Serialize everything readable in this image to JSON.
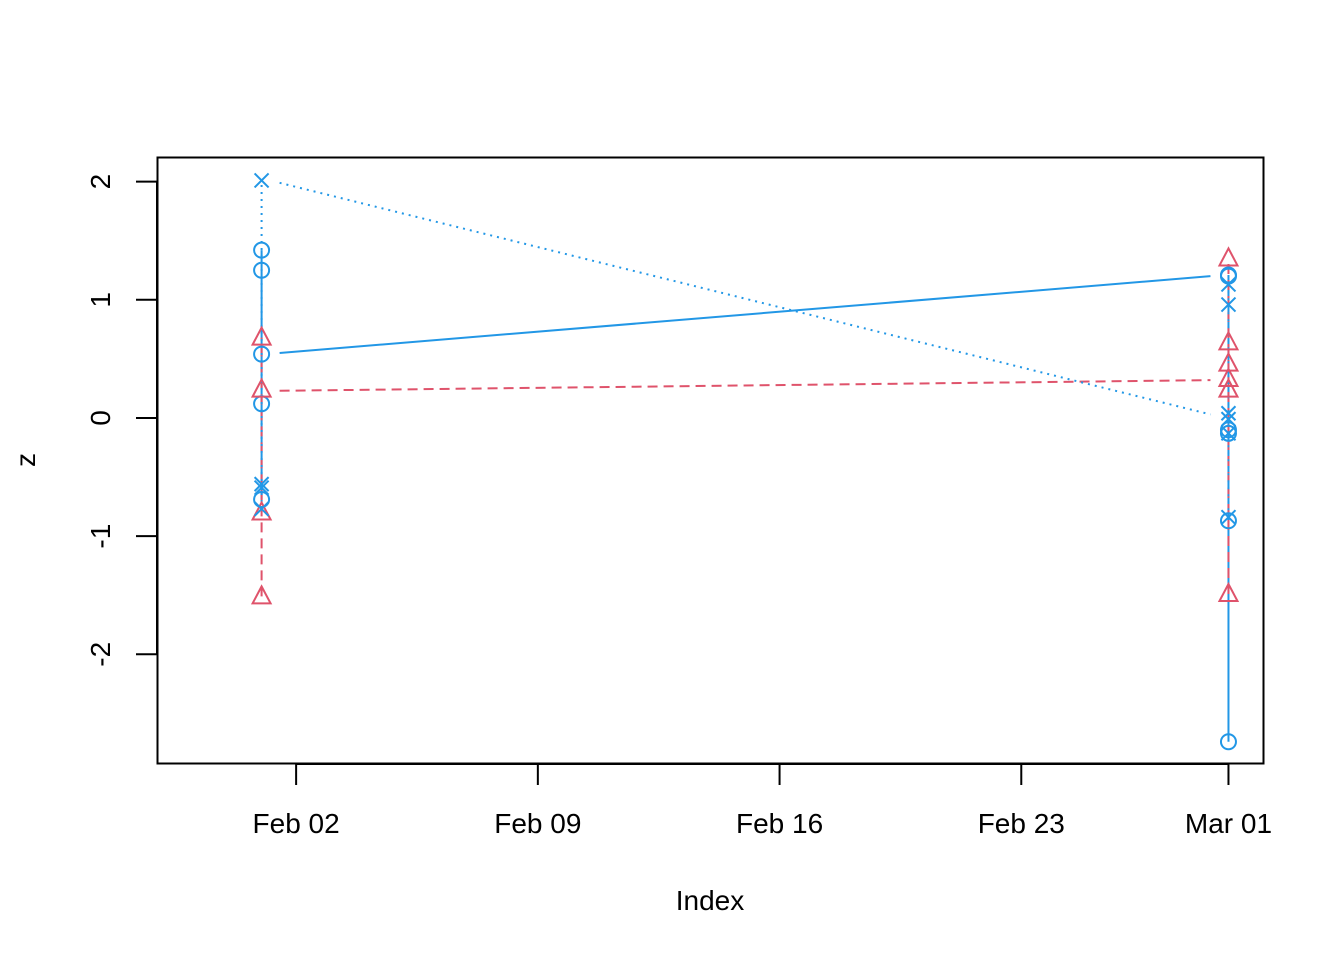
{
  "chart_data": {
    "type": "line",
    "title": "",
    "xlabel": "Index",
    "ylabel": "z",
    "x_ticks": [
      "Feb 02",
      "Feb 09",
      "Feb 16",
      "Feb 23",
      "Mar 01"
    ],
    "x_tick_dates": [
      "2019-02-02",
      "2019-02-09",
      "2019-02-16",
      "2019-02-23",
      "2019-03-01"
    ],
    "y_ticks": [
      "-2",
      "-1",
      "0",
      "1",
      "2"
    ],
    "y_tick_values": [
      -2,
      -1,
      0,
      1,
      2
    ],
    "xlim": [
      "2019-01-29",
      "2019-03-02"
    ],
    "ylim": [
      -2.92,
      2.2
    ],
    "grid": false,
    "legend": "none",
    "series": [
      {
        "color": "#2297E6",
        "marker": "circle",
        "line": "solid",
        "points": [
          {
            "x": "2019-02-01",
            "y": 1.42
          },
          {
            "x": "2019-02-01",
            "y": 1.25
          },
          {
            "x": "2019-02-01",
            "y": 0.54
          },
          {
            "x": "2019-02-01",
            "y": 0.12
          },
          {
            "x": "2019-02-01",
            "y": -0.69
          },
          {
            "x": "2019-03-01",
            "y": 1.21
          },
          {
            "x": "2019-03-01",
            "y": 1.2
          },
          {
            "x": "2019-03-01",
            "y": -0.1
          },
          {
            "x": "2019-03-01",
            "y": -0.13
          },
          {
            "x": "2019-03-01",
            "y": -0.87
          },
          {
            "x": "2019-03-01",
            "y": -2.74
          }
        ]
      },
      {
        "color": "#DF536B",
        "marker": "triangle",
        "line": "dashed",
        "points": [
          {
            "x": "2019-02-01",
            "y": 0.68
          },
          {
            "x": "2019-02-01",
            "y": 0.24
          },
          {
            "x": "2019-02-01",
            "y": -0.8
          },
          {
            "x": "2019-02-01",
            "y": -1.51
          },
          {
            "x": "2019-03-01",
            "y": 1.35
          },
          {
            "x": "2019-03-01",
            "y": 0.64
          },
          {
            "x": "2019-03-01",
            "y": 0.46
          },
          {
            "x": "2019-03-01",
            "y": 0.33
          },
          {
            "x": "2019-03-01",
            "y": 0.24
          },
          {
            "x": "2019-03-01",
            "y": -1.49
          }
        ]
      },
      {
        "color": "#2297E6",
        "marker": "cross",
        "line": "dotted",
        "points": [
          {
            "x": "2019-02-01",
            "y": 2.01
          },
          {
            "x": "2019-02-01",
            "y": -0.56
          },
          {
            "x": "2019-02-01",
            "y": -0.59
          },
          {
            "x": "2019-02-01",
            "y": -0.77
          },
          {
            "x": "2019-03-01",
            "y": 1.13
          },
          {
            "x": "2019-03-01",
            "y": 0.96
          },
          {
            "x": "2019-03-01",
            "y": 0.04
          },
          {
            "x": "2019-03-01",
            "y": -0.01
          },
          {
            "x": "2019-03-01",
            "y": -0.13
          },
          {
            "x": "2019-03-01",
            "y": -0.84
          }
        ]
      }
    ],
    "connector_lines": [
      {
        "color": "#2297E6",
        "line": "solid",
        "from": {
          "x": "2019-02-01",
          "y": 0.55
        },
        "to": {
          "x": "2019-03-01",
          "y": 1.2
        }
      },
      {
        "color": "#DF536B",
        "line": "dashed",
        "from": {
          "x": "2019-02-01",
          "y": 0.23
        },
        "to": {
          "x": "2019-03-01",
          "y": 0.32
        }
      },
      {
        "color": "#2297E6",
        "line": "dotted",
        "from": {
          "x": "2019-02-01",
          "y": 1.99
        },
        "to": {
          "x": "2019-03-01",
          "y": 0.03
        }
      }
    ],
    "vertical_segments": [
      {
        "color": "#2297E6",
        "line": "solid",
        "x": "2019-02-01",
        "y": [
          -0.69,
          1.42
        ]
      },
      {
        "color": "#DF536B",
        "line": "dashed",
        "x": "2019-02-01",
        "y": [
          -1.51,
          0.68
        ]
      },
      {
        "color": "#2297E6",
        "line": "dotted",
        "x": "2019-02-01",
        "y": [
          -0.77,
          2.01
        ]
      },
      {
        "color": "#2297E6",
        "line": "solid",
        "x": "2019-03-01",
        "y": [
          -2.74,
          1.21
        ]
      },
      {
        "color": "#DF536B",
        "line": "dashed",
        "x": "2019-03-01",
        "y": [
          -1.49,
          1.35
        ]
      },
      {
        "color": "#2297E6",
        "line": "dotted",
        "x": "2019-03-01",
        "y": [
          -0.84,
          1.13
        ]
      }
    ]
  }
}
